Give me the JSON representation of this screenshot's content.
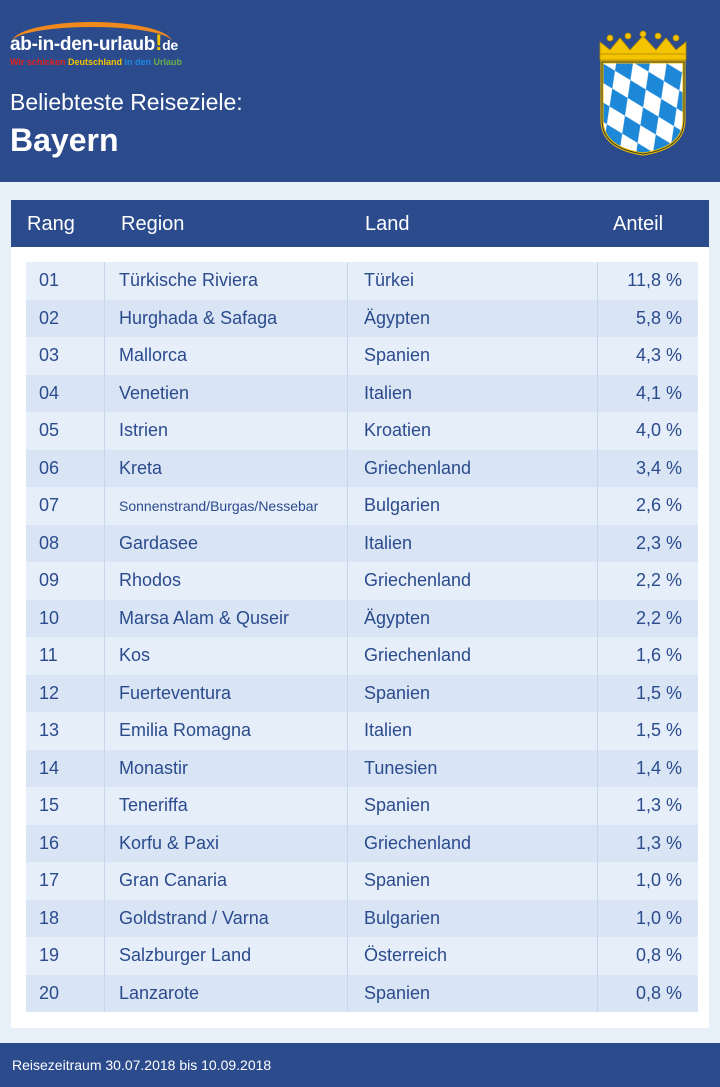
{
  "logo": {
    "name": "ab-in-den-urlaub",
    "exclaim": "!",
    "tld": "de",
    "tagline": [
      "Wir schicken ",
      "Deutschland ",
      "in den ",
      "Urlaub"
    ],
    "tagline_colors": [
      "#e2231a",
      "#f5c400",
      "#1e88e5",
      "#6ab04c"
    ]
  },
  "header": {
    "subtitle": "Beliebteste Reiseziele:",
    "title": "Bayern"
  },
  "table": {
    "columns": [
      "Rang",
      "Region",
      "Land",
      "Anteil"
    ],
    "rows": [
      [
        "01",
        "Türkische Riviera",
        "Türkei",
        "11,8 %"
      ],
      [
        "02",
        "Hurghada & Safaga",
        "Ägypten",
        "5,8 %"
      ],
      [
        "03",
        "Mallorca",
        "Spanien",
        "4,3 %"
      ],
      [
        "04",
        "Venetien",
        "Italien",
        "4,1 %"
      ],
      [
        "05",
        "Istrien",
        "Kroatien",
        "4,0 %"
      ],
      [
        "06",
        "Kreta",
        "Griechenland",
        "3,4 %"
      ],
      [
        "07",
        "Sonnenstrand/Burgas/Nessebar",
        "Bulgarien",
        "2,6 %"
      ],
      [
        "08",
        "Gardasee",
        "Italien",
        "2,3 %"
      ],
      [
        "09",
        "Rhodos",
        "Griechenland",
        "2,2 %"
      ],
      [
        "10",
        "Marsa Alam & Quseir",
        "Ägypten",
        "2,2 %"
      ],
      [
        "11",
        "Kos",
        "Griechenland",
        "1,6 %"
      ],
      [
        "12",
        "Fuerteventura",
        "Spanien",
        "1,5 %"
      ],
      [
        "13",
        "Emilia Romagna",
        "Italien",
        "1,5 %"
      ],
      [
        "14",
        "Monastir",
        "Tunesien",
        "1,4 %"
      ],
      [
        "15",
        "Teneriffa",
        "Spanien",
        "1,3 %"
      ],
      [
        "16",
        "Korfu & Paxi",
        "Griechenland",
        "1,3 %"
      ],
      [
        "17",
        "Gran Canaria",
        "Spanien",
        "1,0 %"
      ],
      [
        "18",
        "Goldstrand / Varna",
        "Bulgarien",
        "1,0 %"
      ],
      [
        "19",
        "Salzburger Land",
        "Österreich",
        "0,8 %"
      ],
      [
        "20",
        "Lanzarote",
        "Spanien",
        "0,8 %"
      ]
    ]
  },
  "footer": {
    "text": "Reisezeitraum 30.07.2018 bis 10.09.2018"
  }
}
